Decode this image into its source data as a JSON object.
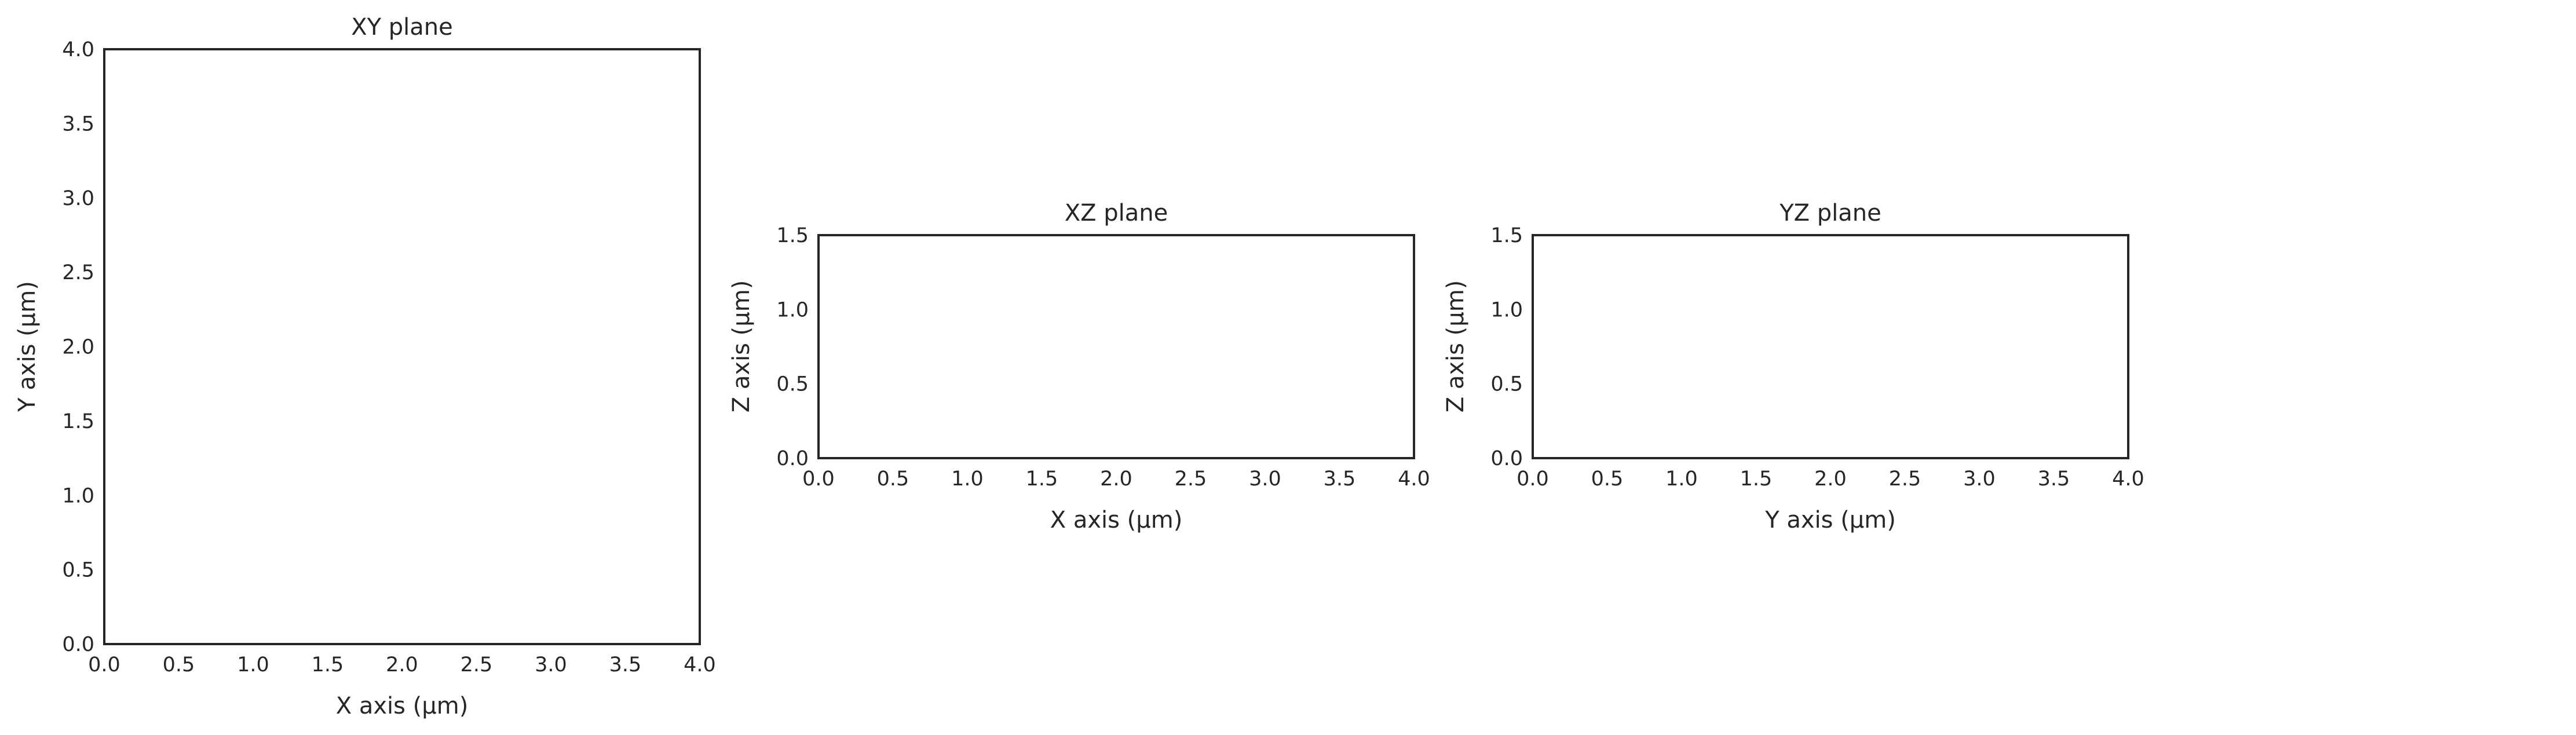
{
  "chart_data": [
    {
      "type": "scatter",
      "title": "XY plane",
      "xlabel": "X axis (µm)",
      "ylabel": "Y axis (µm)",
      "xlim": [
        0.0,
        4.0
      ],
      "ylim": [
        0.0,
        4.0
      ],
      "xticks": [
        "0.0",
        "0.5",
        "1.0",
        "1.5",
        "2.0",
        "2.5",
        "3.0",
        "3.5",
        "4.0"
      ],
      "yticks": [
        "0.0",
        "0.5",
        "1.0",
        "1.5",
        "2.0",
        "2.5",
        "3.0",
        "3.5",
        "4.0"
      ],
      "grid": true,
      "series": []
    },
    {
      "type": "scatter",
      "title": "XZ plane",
      "xlabel": "X axis (µm)",
      "ylabel": "Z axis (µm)",
      "xlim": [
        0.0,
        4.0
      ],
      "ylim": [
        0.0,
        1.5
      ],
      "xticks": [
        "0.0",
        "0.5",
        "1.0",
        "1.5",
        "2.0",
        "2.5",
        "3.0",
        "3.5",
        "4.0"
      ],
      "yticks": [
        "0.0",
        "0.5",
        "1.0",
        "1.5"
      ],
      "grid": true,
      "series": []
    },
    {
      "type": "scatter",
      "title": "YZ plane",
      "xlabel": "Y axis (µm)",
      "ylabel": "Z axis (µm)",
      "xlim": [
        0.0,
        4.0
      ],
      "ylim": [
        0.0,
        1.5
      ],
      "xticks": [
        "0.0",
        "0.5",
        "1.0",
        "1.5",
        "2.0",
        "2.5",
        "3.0",
        "3.5",
        "4.0"
      ],
      "yticks": [
        "0.0",
        "0.5",
        "1.0",
        "1.5"
      ],
      "grid": true,
      "series": []
    }
  ]
}
